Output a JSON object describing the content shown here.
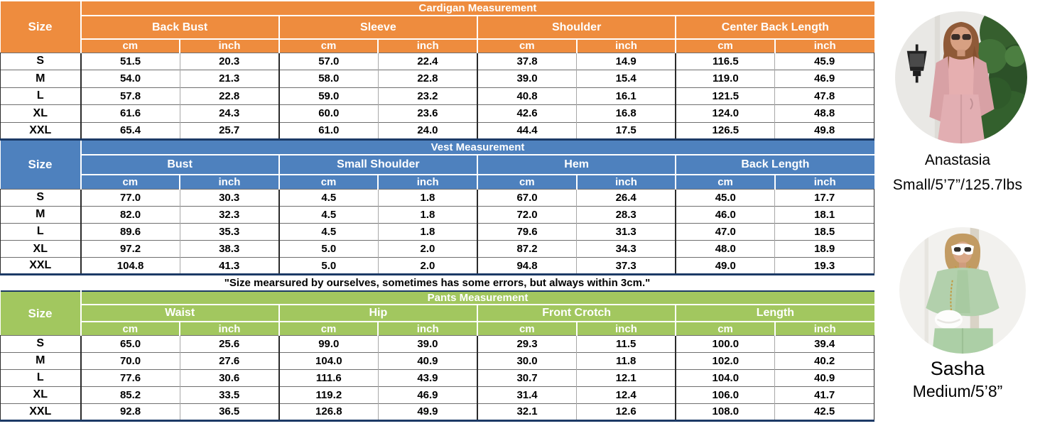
{
  "colors": {
    "cardigan_accent": "#EE8C3E",
    "vest_accent": "#4E81BE",
    "pants_accent": "#A2C75F",
    "table_bottom_border": "#1C3A66"
  },
  "tables": [
    {
      "id": "cardigan",
      "title": "Cardigan Measurement",
      "accent": "#EE8C3E",
      "size_label": "Size",
      "groups": [
        "Back Bust",
        "Sleeve",
        "Shoulder",
        "Center Back Length"
      ],
      "unit_labels": [
        "cm",
        "inch"
      ],
      "rows": [
        {
          "size": "S",
          "values": [
            "51.5",
            "20.3",
            "57.0",
            "22.4",
            "37.8",
            "14.9",
            "116.5",
            "45.9"
          ]
        },
        {
          "size": "M",
          "values": [
            "54.0",
            "21.3",
            "58.0",
            "22.8",
            "39.0",
            "15.4",
            "119.0",
            "46.9"
          ]
        },
        {
          "size": "L",
          "values": [
            "57.8",
            "22.8",
            "59.0",
            "23.2",
            "40.8",
            "16.1",
            "121.5",
            "47.8"
          ]
        },
        {
          "size": "XL",
          "values": [
            "61.6",
            "24.3",
            "60.0",
            "23.6",
            "42.6",
            "16.8",
            "124.0",
            "48.8"
          ]
        },
        {
          "size": "XXL",
          "values": [
            "65.4",
            "25.7",
            "61.0",
            "24.0",
            "44.4",
            "17.5",
            "126.5",
            "49.8"
          ]
        }
      ]
    },
    {
      "id": "vest",
      "title": "Vest Measurement",
      "accent": "#4E81BE",
      "size_label": "Size",
      "groups": [
        "Bust",
        "Small Shoulder",
        "Hem",
        "Back Length"
      ],
      "unit_labels": [
        "cm",
        "inch"
      ],
      "rows": [
        {
          "size": "S",
          "values": [
            "77.0",
            "30.3",
            "4.5",
            "1.8",
            "67.0",
            "26.4",
            "45.0",
            "17.7"
          ]
        },
        {
          "size": "M",
          "values": [
            "82.0",
            "32.3",
            "4.5",
            "1.8",
            "72.0",
            "28.3",
            "46.0",
            "18.1"
          ]
        },
        {
          "size": "L",
          "values": [
            "89.6",
            "35.3",
            "4.5",
            "1.8",
            "79.6",
            "31.3",
            "47.0",
            "18.5"
          ]
        },
        {
          "size": "XL",
          "values": [
            "97.2",
            "38.3",
            "5.0",
            "2.0",
            "87.2",
            "34.3",
            "48.0",
            "18.9"
          ]
        },
        {
          "size": "XXL",
          "values": [
            "104.8",
            "41.3",
            "5.0",
            "2.0",
            "94.8",
            "37.3",
            "49.0",
            "19.3"
          ]
        }
      ]
    },
    {
      "id": "pants",
      "title": "Pants Measurement",
      "accent": "#A2C75F",
      "size_label": "Size",
      "groups": [
        "Waist",
        "Hip",
        "Front Crotch",
        "Length"
      ],
      "unit_labels": [
        "cm",
        "inch"
      ],
      "rows": [
        {
          "size": "S",
          "values": [
            "65.0",
            "25.6",
            "99.0",
            "39.0",
            "29.3",
            "11.5",
            "100.0",
            "39.4"
          ]
        },
        {
          "size": "M",
          "values": [
            "70.0",
            "27.6",
            "104.0",
            "40.9",
            "30.0",
            "11.8",
            "102.0",
            "40.2"
          ]
        },
        {
          "size": "L",
          "values": [
            "77.6",
            "30.6",
            "111.6",
            "43.9",
            "30.7",
            "12.1",
            "104.0",
            "40.9"
          ]
        },
        {
          "size": "XL",
          "values": [
            "85.2",
            "33.5",
            "119.2",
            "46.9",
            "31.4",
            "12.4",
            "106.0",
            "41.7"
          ]
        },
        {
          "size": "XXL",
          "values": [
            "92.8",
            "36.5",
            "126.8",
            "49.9",
            "32.1",
            "12.6",
            "108.0",
            "42.5"
          ]
        }
      ]
    }
  ],
  "note": "\"Size mearsured by ourselves, sometimes has some errors, but always within 3cm.\"",
  "models": [
    {
      "name": "Anastasia",
      "spec": "Small/5’7”/125.7lbs"
    },
    {
      "name": "Sasha",
      "spec": "Medium/5’8”"
    }
  ]
}
